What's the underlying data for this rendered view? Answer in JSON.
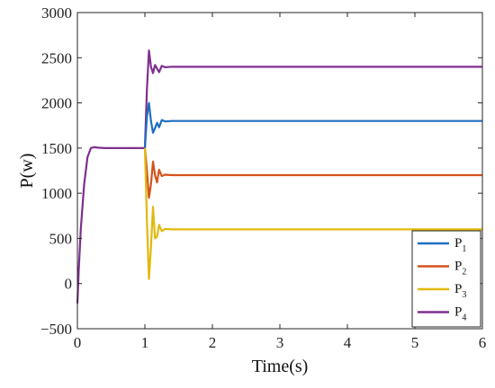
{
  "chart_data": {
    "type": "line",
    "xlabel": "Time(s)",
    "ylabel": "P(w)",
    "xlim": [
      0,
      6
    ],
    "ylim": [
      -500,
      3000
    ],
    "xticks": [
      "0",
      "1",
      "2",
      "3",
      "4",
      "5",
      "6"
    ],
    "yticks": [
      "-500",
      "0",
      "500",
      "1000",
      "1500",
      "2000",
      "2500",
      "3000"
    ],
    "grid": false,
    "legend_position": "bottom-right",
    "colors": {
      "P1": "#1f6fc0",
      "P2": "#d4531b",
      "P3": "#e2b80f",
      "P4": "#7e2f8e"
    },
    "series": [
      {
        "name": "P",
        "subscript": "1",
        "color_key": "P1",
        "x": [
          1.0,
          1.03,
          1.06,
          1.09,
          1.12,
          1.15,
          1.18,
          1.21,
          1.25,
          1.3,
          1.4,
          2,
          3,
          4,
          5,
          6
        ],
        "y": [
          1500,
          1850,
          2000,
          1800,
          1670,
          1720,
          1780,
          1730,
          1810,
          1795,
          1800,
          1800,
          1800,
          1800,
          1800,
          1800
        ]
      },
      {
        "name": "P",
        "subscript": "2",
        "color_key": "P2",
        "x": [
          1.0,
          1.03,
          1.06,
          1.09,
          1.12,
          1.15,
          1.18,
          1.21,
          1.25,
          1.3,
          1.4,
          2,
          3,
          4,
          5,
          6
        ],
        "y": [
          1500,
          1250,
          950,
          1100,
          1350,
          1200,
          1120,
          1260,
          1190,
          1205,
          1200,
          1200,
          1200,
          1200,
          1200,
          1200
        ]
      },
      {
        "name": "P",
        "subscript": "3",
        "color_key": "P3",
        "x": [
          1.0,
          1.03,
          1.06,
          1.09,
          1.12,
          1.15,
          1.18,
          1.21,
          1.25,
          1.3,
          1.4,
          2,
          3,
          4,
          5,
          6
        ],
        "y": [
          1500,
          700,
          50,
          400,
          850,
          500,
          520,
          650,
          580,
          605,
          600,
          600,
          600,
          600,
          600,
          600
        ]
      },
      {
        "name": "P",
        "subscript": "4",
        "color_key": "P4",
        "x": [
          0,
          0.02,
          0.05,
          0.1,
          0.15,
          0.2,
          0.25,
          0.3,
          0.4,
          0.6,
          0.8,
          1.0,
          1.03,
          1.06,
          1.09,
          1.12,
          1.15,
          1.18,
          1.21,
          1.25,
          1.3,
          1.4,
          2,
          3,
          4,
          5,
          6
        ],
        "y": [
          -220,
          150,
          600,
          1100,
          1400,
          1500,
          1510,
          1505,
          1500,
          1500,
          1500,
          1500,
          2150,
          2580,
          2400,
          2330,
          2420,
          2380,
          2340,
          2410,
          2395,
          2400,
          2400,
          2400,
          2400,
          2400,
          2400
        ]
      }
    ]
  }
}
